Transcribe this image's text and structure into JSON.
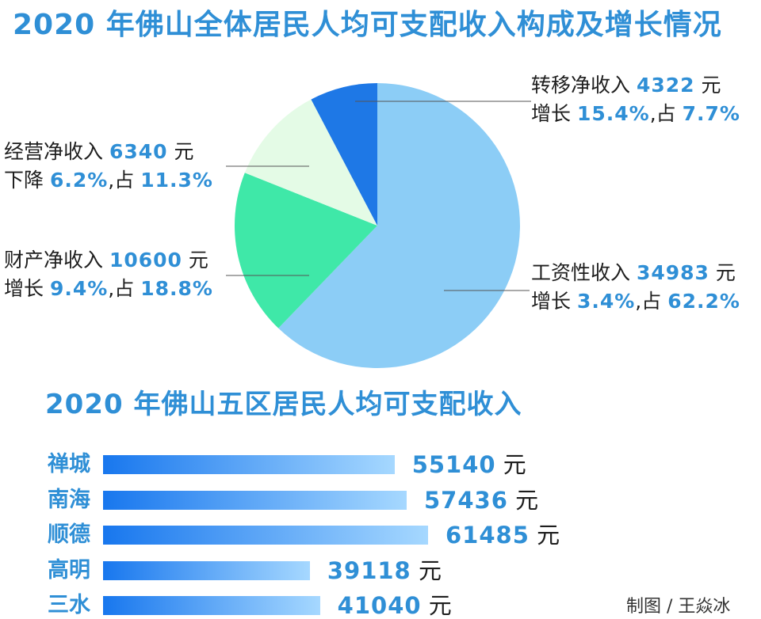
{
  "titles": {
    "pie": "2020 年佛山全体居民人均可支配收入构成及增长情况",
    "bars": "2020 年佛山五区居民人均可支配收入"
  },
  "colors": {
    "title": "#2f8fd6",
    "wage": "#8ccdf6",
    "property": "#3fe8a8",
    "business": "#e4fbe6",
    "transfer": "#1e78e6",
    "bar_start": "#1877ee",
    "bar_end": "#a6d8ff"
  },
  "labels": {
    "transfer": {
      "l1a": "转移净收入 ",
      "l1n": "4322",
      "l1b": " 元",
      "l2a": "增长 ",
      "l2n": "15.4%",
      "l2b": ",占 ",
      "l2m": "7.7%"
    },
    "business": {
      "l1a": "经营净收入 ",
      "l1n": "6340",
      "l1b": " 元",
      "l2a": "下降 ",
      "l2n": "6.2%",
      "l2b": ",占 ",
      "l2m": "11.3%"
    },
    "property": {
      "l1a": "财产净收入 ",
      "l1n": "10600",
      "l1b": " 元",
      "l2a": "增长 ",
      "l2n": "9.4%",
      "l2b": ",占 ",
      "l2m": "18.8%"
    },
    "wage": {
      "l1a": "工资性收入 ",
      "l1n": "34983",
      "l1b": " 元",
      "l2a": "增长 ",
      "l2n": "3.4%",
      "l2b": ",占 ",
      "l2m": "62.2%"
    }
  },
  "unit": "元",
  "credit": "制图 / 王焱冰",
  "chart_data": [
    {
      "type": "pie",
      "title": "2020 年佛山全体居民人均可支配收入构成及增长情况",
      "categories": [
        "工资性收入",
        "财产净收入",
        "经营净收入",
        "转移净收入"
      ],
      "values": [
        34983,
        10600,
        6340,
        4322
      ],
      "shares": [
        62.2,
        18.8,
        11.3,
        7.7
      ],
      "growth": [
        3.4,
        9.4,
        -6.2,
        15.4
      ],
      "colors": [
        "#8ccdf6",
        "#3fe8a8",
        "#e4fbe6",
        "#1e78e6"
      ]
    },
    {
      "type": "bar",
      "orientation": "horizontal",
      "title": "2020 年佛山五区居民人均可支配收入",
      "categories": [
        "禅城",
        "南海",
        "顺德",
        "高明",
        "三水"
      ],
      "values": [
        55140,
        57436,
        61485,
        39118,
        41040
      ],
      "xlim": [
        0,
        61485
      ]
    }
  ]
}
